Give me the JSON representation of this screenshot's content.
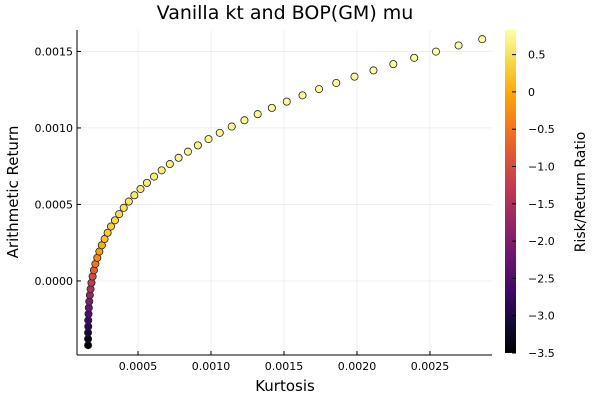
{
  "chart_data": {
    "type": "scatter",
    "title": "Vanilla kt and BOP(GM) mu",
    "xlabel": "Kurtosis",
    "ylabel": "Arithmetic Return",
    "colorbar_label": "Risk/Return Ratio",
    "xlim": [
      8.2e-05,
      0.002925
    ],
    "ylim": [
      -0.000484,
      0.00164
    ],
    "clim": [
      -3.5,
      0.83
    ],
    "grid": true,
    "legend": "none",
    "colormap": "inferno",
    "x_ticks": [
      {
        "v": 0.0005,
        "label": "0.0005"
      },
      {
        "v": 0.001,
        "label": "0.0010"
      },
      {
        "v": 0.0015,
        "label": "0.0015"
      },
      {
        "v": 0.002,
        "label": "0.0020"
      },
      {
        "v": 0.0025,
        "label": "0.0025"
      }
    ],
    "y_ticks": [
      {
        "v": 0.0,
        "label": "0.0000"
      },
      {
        "v": 0.0005,
        "label": "0.0005"
      },
      {
        "v": 0.001,
        "label": "0.0010"
      },
      {
        "v": 0.0015,
        "label": "0.0015"
      }
    ],
    "c_ticks": [
      {
        "v": 0.5,
        "label": "0.5"
      },
      {
        "v": 0,
        "label": "0"
      },
      {
        "v": -0.5,
        "label": "−0.5"
      },
      {
        "v": -1.0,
        "label": "−1.0"
      },
      {
        "v": -1.5,
        "label": "−1.5"
      },
      {
        "v": -2.0,
        "label": "−2.0"
      },
      {
        "v": -2.5,
        "label": "−2.5"
      },
      {
        "v": -3.0,
        "label": "−3.0"
      },
      {
        "v": -3.5,
        "label": "−3.5"
      }
    ],
    "x": [
      0.000158,
      0.000158,
      0.000158,
      0.000159,
      0.000159,
      0.000161,
      0.000163,
      0.000166,
      0.00017,
      0.000175,
      0.000181,
      0.000189,
      0.000198,
      0.000208,
      0.000221,
      0.000235,
      0.000252,
      0.000271,
      0.000292,
      0.000315,
      0.000342,
      0.000371,
      0.000402,
      0.000437,
      0.000475,
      0.000517,
      0.000561,
      0.00061,
      0.000662,
      0.000718,
      0.000778,
      0.000842,
      0.00091,
      0.000983,
      0.00106,
      0.001142,
      0.001229,
      0.00132,
      0.001417,
      0.001519,
      0.001627,
      0.00174,
      0.001858,
      0.001983,
      0.002113,
      0.002249,
      0.002392,
      0.002541,
      0.002696,
      0.002858
    ],
    "y": [
      -0.00042,
      -0.000379,
      -0.000338,
      -0.000298,
      -0.000257,
      -0.000216,
      -0.000175,
      -0.000134,
      -9.3e-05,
      -5.3e-05,
      -1.2e-05,
      2.9e-05,
      7e-05,
      0.000111,
      0.000151,
      0.000192,
      0.000233,
      0.000274,
      0.000315,
      0.000356,
      0.000396,
      0.000437,
      0.000478,
      0.000519,
      0.00056,
      0.000601,
      0.000641,
      0.000682,
      0.000723,
      0.000764,
      0.000805,
      0.000845,
      0.000886,
      0.000927,
      0.000968,
      0.001009,
      0.00105,
      0.00109,
      0.001131,
      0.001172,
      0.001213,
      0.001254,
      0.001294,
      0.001335,
      0.001376,
      0.001417,
      0.001458,
      0.001499,
      0.001539,
      0.00158
    ],
    "z": [
      -3.5,
      -3.3,
      -3.1,
      -2.9,
      -2.7,
      -2.5,
      -2.25,
      -2.0,
      -1.75,
      -1.5,
      -1.25,
      -1.0,
      -0.75,
      -0.5,
      -0.3,
      -0.12,
      0.05,
      0.2,
      0.27,
      0.33,
      0.39,
      0.45,
      0.5,
      0.53,
      0.56,
      0.58,
      0.61,
      0.63,
      0.65,
      0.67,
      0.7,
      0.71,
      0.71,
      0.72,
      0.73,
      0.73,
      0.74,
      0.75,
      0.76,
      0.76,
      0.77,
      0.78,
      0.78,
      0.79,
      0.8,
      0.8,
      0.81,
      0.82,
      0.82,
      0.83
    ]
  }
}
